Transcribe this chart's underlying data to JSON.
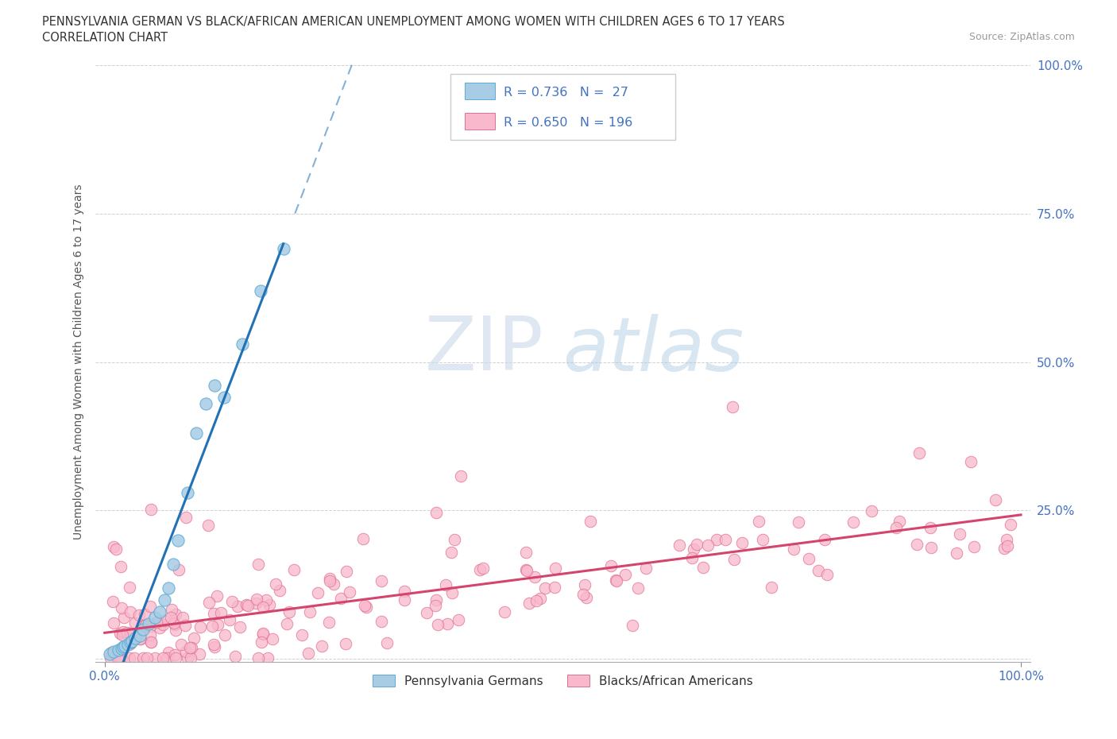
{
  "title_line1": "PENNSYLVANIA GERMAN VS BLACK/AFRICAN AMERICAN UNEMPLOYMENT AMONG WOMEN WITH CHILDREN AGES 6 TO 17 YEARS",
  "title_line2": "CORRELATION CHART",
  "source": "Source: ZipAtlas.com",
  "ylabel": "Unemployment Among Women with Children Ages 6 to 17 years",
  "watermark_zip": "ZIP",
  "watermark_atlas": "atlas",
  "legend_blue_label": "Pennsylvania Germans",
  "legend_pink_label": "Blacks/African Americans",
  "blue_R": 0.736,
  "blue_N": 27,
  "pink_R": 0.65,
  "pink_N": 196,
  "blue_color": "#a8cce4",
  "blue_line_color": "#2171b5",
  "blue_edge_color": "#5bacd6",
  "pink_color": "#f9b8cc",
  "pink_line_color": "#d4456e",
  "pink_edge_color": "#e07090",
  "title_color": "#333333",
  "axis_label_color": "#4472c4",
  "ylabel_color": "#555555",
  "grid_color": "#cccccc",
  "source_color": "#999999",
  "legend_edge_color": "#cccccc",
  "watermark_zip_color": "#c8d8ea",
  "watermark_atlas_color": "#a8c8e0"
}
